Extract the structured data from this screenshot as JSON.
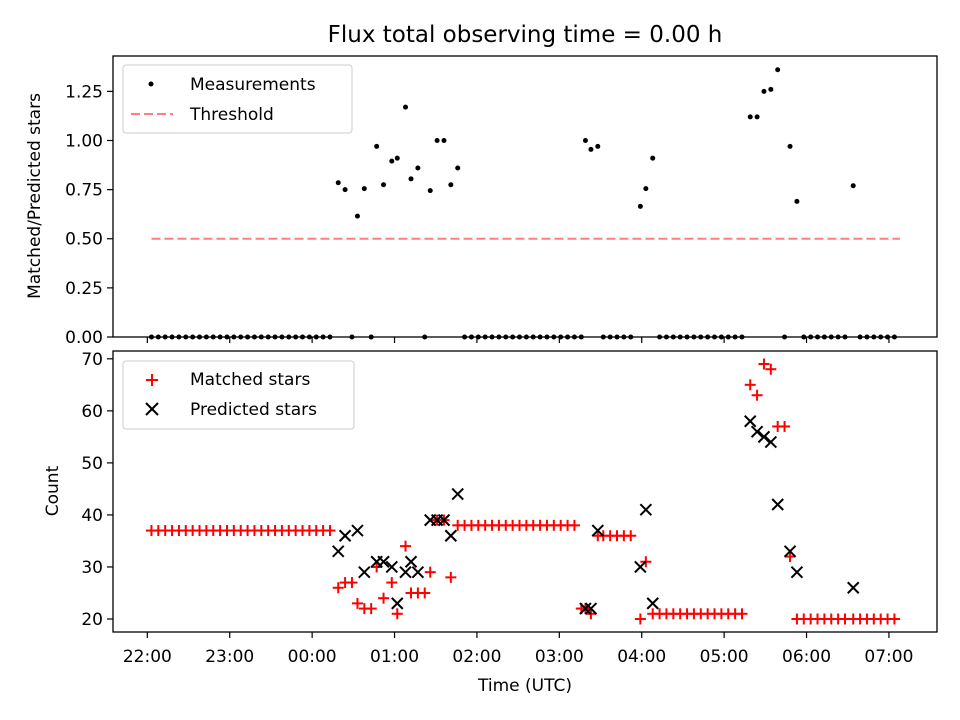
{
  "figure": {
    "title": "Flux total observing time = 0.00 h",
    "colors": {
      "measurement": "#000000",
      "threshold": "#ff7f7f",
      "matched": "#ff0000",
      "predicted": "#000000"
    }
  },
  "chart_data": [
    {
      "type": "scatter",
      "ylabel": "Matched/Predicted stars",
      "ylim": [
        0,
        1.43
      ],
      "yticks": [
        "0.00",
        "0.25",
        "0.50",
        "0.75",
        "1.00",
        "1.25"
      ],
      "xlim": [
        "21:35",
        "07:35"
      ],
      "x_unit": "time (UTC)",
      "legend": {
        "placement": "top-left",
        "entries": [
          "Measurements",
          "Threshold"
        ]
      },
      "threshold": {
        "name": "Threshold",
        "y": 0.5,
        "x_range": [
          "22:03",
          "07:08"
        ]
      },
      "series": [
        {
          "name": "Measurements",
          "points": [
            [
              "22:03",
              0
            ],
            [
              "22:08",
              0
            ],
            [
              "22:13",
              0
            ],
            [
              "22:18",
              0
            ],
            [
              "22:23",
              0
            ],
            [
              "22:28",
              0
            ],
            [
              "22:33",
              0
            ],
            [
              "22:38",
              0
            ],
            [
              "22:43",
              0
            ],
            [
              "22:48",
              0
            ],
            [
              "22:53",
              0
            ],
            [
              "22:58",
              0
            ],
            [
              "23:03",
              0
            ],
            [
              "23:08",
              0
            ],
            [
              "23:13",
              0
            ],
            [
              "23:18",
              0
            ],
            [
              "23:23",
              0
            ],
            [
              "23:28",
              0
            ],
            [
              "23:33",
              0
            ],
            [
              "23:38",
              0
            ],
            [
              "23:43",
              0
            ],
            [
              "23:48",
              0
            ],
            [
              "23:53",
              0
            ],
            [
              "23:58",
              0
            ],
            [
              "00:03",
              0
            ],
            [
              "00:08",
              0
            ],
            [
              "00:13",
              0
            ],
            [
              "00:19",
              0.785
            ],
            [
              "00:24",
              0.75
            ],
            [
              "00:29",
              0
            ],
            [
              "00:33",
              0.615
            ],
            [
              "00:38",
              0.755
            ],
            [
              "00:43",
              0
            ],
            [
              "00:47",
              0.97
            ],
            [
              "00:52",
              0.775
            ],
            [
              "00:58",
              0.895
            ],
            [
              "01:02",
              0.91
            ],
            [
              "01:08",
              1.17
            ],
            [
              "01:12",
              0.805
            ],
            [
              "01:17",
              0.86
            ],
            [
              "01:22",
              0
            ],
            [
              "01:26",
              0.745
            ],
            [
              "01:31",
              1.0
            ],
            [
              "01:36",
              1.0
            ],
            [
              "01:41",
              0.775
            ],
            [
              "01:46",
              0.86
            ],
            [
              "01:51",
              0
            ],
            [
              "01:56",
              0
            ],
            [
              "02:01",
              0
            ],
            [
              "02:06",
              0
            ],
            [
              "02:11",
              0
            ],
            [
              "02:16",
              0
            ],
            [
              "02:21",
              0
            ],
            [
              "02:26",
              0
            ],
            [
              "02:31",
              0
            ],
            [
              "02:36",
              0
            ],
            [
              "02:41",
              0
            ],
            [
              "02:46",
              0
            ],
            [
              "02:51",
              0
            ],
            [
              "02:56",
              0
            ],
            [
              "03:01",
              0
            ],
            [
              "03:06",
              0
            ],
            [
              "03:11",
              0
            ],
            [
              "03:16",
              0
            ],
            [
              "03:19",
              1.0
            ],
            [
              "03:23",
              0.955
            ],
            [
              "03:28",
              0.97
            ],
            [
              "03:32",
              0
            ],
            [
              "03:37",
              0
            ],
            [
              "03:42",
              0
            ],
            [
              "03:47",
              0
            ],
            [
              "03:52",
              0
            ],
            [
              "03:59",
              0.665
            ],
            [
              "04:03",
              0.755
            ],
            [
              "04:08",
              0.91
            ],
            [
              "04:13",
              0
            ],
            [
              "04:18",
              0
            ],
            [
              "04:23",
              0
            ],
            [
              "04:28",
              0
            ],
            [
              "04:33",
              0
            ],
            [
              "04:38",
              0
            ],
            [
              "04:43",
              0
            ],
            [
              "04:48",
              0
            ],
            [
              "04:53",
              0
            ],
            [
              "04:58",
              0
            ],
            [
              "05:03",
              0
            ],
            [
              "05:08",
              0
            ],
            [
              "05:13",
              0
            ],
            [
              "05:19",
              1.12
            ],
            [
              "05:24",
              1.12
            ],
            [
              "05:29",
              1.25
            ],
            [
              "05:34",
              1.26
            ],
            [
              "05:39",
              1.36
            ],
            [
              "05:44",
              0
            ],
            [
              "05:48",
              0.97
            ],
            [
              "05:53",
              0.69
            ],
            [
              "05:58",
              0
            ],
            [
              "06:03",
              0
            ],
            [
              "06:08",
              0
            ],
            [
              "06:13",
              0
            ],
            [
              "06:18",
              0
            ],
            [
              "06:23",
              0
            ],
            [
              "06:28",
              0
            ],
            [
              "06:34",
              0.77
            ],
            [
              "06:39",
              0
            ],
            [
              "06:44",
              0
            ],
            [
              "06:49",
              0
            ],
            [
              "06:54",
              0
            ],
            [
              "06:59",
              0
            ],
            [
              "07:04",
              0
            ]
          ]
        }
      ]
    },
    {
      "type": "scatter",
      "xlabel": "Time (UTC)",
      "ylabel": "Count",
      "ylim": [
        17.5,
        71.5
      ],
      "yticks": [
        "20",
        "30",
        "40",
        "50",
        "60",
        "70"
      ],
      "xlim": [
        "21:35",
        "07:35"
      ],
      "xticks": [
        "22:00",
        "23:00",
        "00:00",
        "01:00",
        "02:00",
        "03:00",
        "04:00",
        "05:00",
        "06:00",
        "07:00"
      ],
      "legend": {
        "placement": "top-left",
        "entries": [
          "Matched stars",
          "Predicted stars"
        ]
      },
      "series": [
        {
          "name": "Matched stars",
          "marker": "plus",
          "points": [
            [
              "22:03",
              37
            ],
            [
              "22:08",
              37
            ],
            [
              "22:13",
              37
            ],
            [
              "22:18",
              37
            ],
            [
              "22:23",
              37
            ],
            [
              "22:28",
              37
            ],
            [
              "22:33",
              37
            ],
            [
              "22:38",
              37
            ],
            [
              "22:43",
              37
            ],
            [
              "22:48",
              37
            ],
            [
              "22:53",
              37
            ],
            [
              "22:58",
              37
            ],
            [
              "23:03",
              37
            ],
            [
              "23:08",
              37
            ],
            [
              "23:13",
              37
            ],
            [
              "23:18",
              37
            ],
            [
              "23:23",
              37
            ],
            [
              "23:28",
              37
            ],
            [
              "23:33",
              37
            ],
            [
              "23:38",
              37
            ],
            [
              "23:43",
              37
            ],
            [
              "23:48",
              37
            ],
            [
              "23:53",
              37
            ],
            [
              "23:58",
              37
            ],
            [
              "00:03",
              37
            ],
            [
              "00:08",
              37
            ],
            [
              "00:13",
              37
            ],
            [
              "00:19",
              26
            ],
            [
              "00:24",
              27
            ],
            [
              "00:29",
              27
            ],
            [
              "00:33",
              23
            ],
            [
              "00:38",
              22
            ],
            [
              "00:43",
              22
            ],
            [
              "00:47",
              30
            ],
            [
              "00:52",
              24
            ],
            [
              "00:58",
              27
            ],
            [
              "01:02",
              21
            ],
            [
              "01:08",
              34
            ],
            [
              "01:12",
              25
            ],
            [
              "01:17",
              25
            ],
            [
              "01:22",
              25
            ],
            [
              "01:26",
              29
            ],
            [
              "01:31",
              39
            ],
            [
              "01:36",
              39
            ],
            [
              "01:41",
              28
            ],
            [
              "01:46",
              38
            ],
            [
              "01:51",
              38
            ],
            [
              "01:56",
              38
            ],
            [
              "02:01",
              38
            ],
            [
              "02:06",
              38
            ],
            [
              "02:11",
              38
            ],
            [
              "02:16",
              38
            ],
            [
              "02:21",
              38
            ],
            [
              "02:26",
              38
            ],
            [
              "02:31",
              38
            ],
            [
              "02:36",
              38
            ],
            [
              "02:41",
              38
            ],
            [
              "02:46",
              38
            ],
            [
              "02:51",
              38
            ],
            [
              "02:56",
              38
            ],
            [
              "03:01",
              38
            ],
            [
              "03:06",
              38
            ],
            [
              "03:11",
              38
            ],
            [
              "03:16",
              22
            ],
            [
              "03:19",
              22
            ],
            [
              "03:23",
              21
            ],
            [
              "03:28",
              36
            ],
            [
              "03:32",
              36
            ],
            [
              "03:37",
              36
            ],
            [
              "03:42",
              36
            ],
            [
              "03:47",
              36
            ],
            [
              "03:52",
              36
            ],
            [
              "03:59",
              20
            ],
            [
              "04:03",
              31
            ],
            [
              "04:08",
              21
            ],
            [
              "04:13",
              21
            ],
            [
              "04:18",
              21
            ],
            [
              "04:23",
              21
            ],
            [
              "04:28",
              21
            ],
            [
              "04:33",
              21
            ],
            [
              "04:38",
              21
            ],
            [
              "04:43",
              21
            ],
            [
              "04:48",
              21
            ],
            [
              "04:53",
              21
            ],
            [
              "04:58",
              21
            ],
            [
              "05:03",
              21
            ],
            [
              "05:08",
              21
            ],
            [
              "05:13",
              21
            ],
            [
              "05:19",
              65
            ],
            [
              "05:24",
              63
            ],
            [
              "05:29",
              69
            ],
            [
              "05:34",
              68
            ],
            [
              "05:39",
              57
            ],
            [
              "05:44",
              57
            ],
            [
              "05:48",
              32
            ],
            [
              "05:53",
              20
            ],
            [
              "05:58",
              20
            ],
            [
              "06:03",
              20
            ],
            [
              "06:08",
              20
            ],
            [
              "06:13",
              20
            ],
            [
              "06:18",
              20
            ],
            [
              "06:23",
              20
            ],
            [
              "06:28",
              20
            ],
            [
              "06:34",
              20
            ],
            [
              "06:39",
              20
            ],
            [
              "06:44",
              20
            ],
            [
              "06:49",
              20
            ],
            [
              "06:54",
              20
            ],
            [
              "06:59",
              20
            ],
            [
              "07:04",
              20
            ]
          ]
        },
        {
          "name": "Predicted stars",
          "marker": "x",
          "points": [
            [
              "00:19",
              33
            ],
            [
              "00:24",
              36
            ],
            [
              "00:33",
              37
            ],
            [
              "00:38",
              29
            ],
            [
              "00:47",
              31
            ],
            [
              "00:52",
              31
            ],
            [
              "00:58",
              30
            ],
            [
              "01:02",
              23
            ],
            [
              "01:08",
              29
            ],
            [
              "01:12",
              31
            ],
            [
              "01:17",
              29
            ],
            [
              "01:26",
              39
            ],
            [
              "01:31",
              39
            ],
            [
              "01:36",
              39
            ],
            [
              "01:41",
              36
            ],
            [
              "01:46",
              44
            ],
            [
              "03:19",
              22
            ],
            [
              "03:23",
              22
            ],
            [
              "03:28",
              37
            ],
            [
              "03:59",
              30
            ],
            [
              "04:03",
              41
            ],
            [
              "04:08",
              23
            ],
            [
              "05:19",
              58
            ],
            [
              "05:24",
              56
            ],
            [
              "05:29",
              55
            ],
            [
              "05:34",
              54
            ],
            [
              "05:39",
              42
            ],
            [
              "05:48",
              33
            ],
            [
              "05:53",
              29
            ],
            [
              "06:34",
              26
            ]
          ]
        }
      ]
    }
  ]
}
